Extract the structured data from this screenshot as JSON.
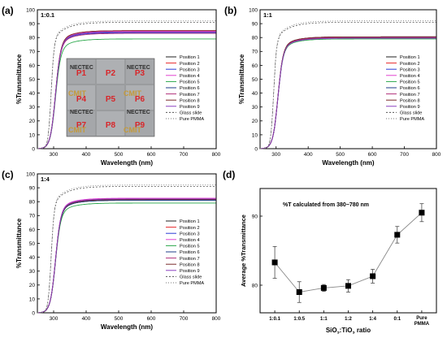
{
  "chart_data": [
    {
      "panel": "(a)",
      "type": "line",
      "ratio_label": "1:0.1",
      "xlabel": "Wavelength (nm)",
      "ylabel": "%Transmittance",
      "xlim": [
        250,
        800
      ],
      "ylim": [
        0,
        100
      ],
      "xticks": [
        300,
        400,
        500,
        600,
        700,
        800
      ],
      "yticks": [
        0,
        10,
        20,
        30,
        40,
        50,
        60,
        70,
        80,
        90,
        100
      ],
      "legend_position": "bottom-right",
      "series": [
        {
          "name": "Position 1",
          "color": "#222222",
          "dash": "",
          "plateau": 84
        },
        {
          "name": "Position 2",
          "color": "#e8292a",
          "dash": "",
          "plateau": 85
        },
        {
          "name": "Position 3",
          "color": "#2b3bd6",
          "dash": "",
          "plateau": 83.5
        },
        {
          "name": "Position 4",
          "color": "#e040d0",
          "dash": "",
          "plateau": 84.5
        },
        {
          "name": "Position 5",
          "color": "#2aa84a",
          "dash": "",
          "plateau": 79
        },
        {
          "name": "Position 6",
          "color": "#1f3c88",
          "dash": "",
          "plateau": 84
        },
        {
          "name": "Position 7",
          "color": "#b0307a",
          "dash": "",
          "plateau": 83
        },
        {
          "name": "Position 8",
          "color": "#7a2a2a",
          "dash": "",
          "plateau": 85
        },
        {
          "name": "Position 9",
          "color": "#8a3fbf",
          "dash": "",
          "plateau": 84
        },
        {
          "name": "Glass slide",
          "color": "#555555",
          "dash": "2,2",
          "plateau": 91
        },
        {
          "name": "Pure PMMA",
          "color": "#777777",
          "dash": "1,2",
          "plateau": 92
        }
      ],
      "inset": {
        "logo_text": [
          "NECTEC",
          "NECTEC",
          "CMIT",
          "CMIT",
          "NECTEC",
          "NECTEC",
          "CMIT",
          "CMIT"
        ],
        "positions": [
          "P1",
          "P2",
          "P3",
          "P4",
          "P5",
          "P6",
          "P7",
          "P8",
          "P9"
        ]
      }
    },
    {
      "panel": "(b)",
      "type": "line",
      "ratio_label": "1:1",
      "xlabel": "Wavelength (nm)",
      "ylabel": "%Transmittance",
      "xlim": [
        250,
        800
      ],
      "ylim": [
        0,
        100
      ],
      "xticks": [
        300,
        400,
        500,
        600,
        700,
        800
      ],
      "yticks": [
        0,
        10,
        20,
        30,
        40,
        50,
        60,
        70,
        80,
        90,
        100
      ],
      "legend_position": "right",
      "series": [
        {
          "name": "Position 1",
          "color": "#222222",
          "dash": "",
          "plateau": 80
        },
        {
          "name": "Position 2",
          "color": "#e8292a",
          "dash": "",
          "plateau": 80.5
        },
        {
          "name": "Position 3",
          "color": "#2b3bd6",
          "dash": "",
          "plateau": 79.5
        },
        {
          "name": "Position 4",
          "color": "#e040d0",
          "dash": "",
          "plateau": 80
        },
        {
          "name": "Position 5",
          "color": "#2aa84a",
          "dash": "",
          "plateau": 79
        },
        {
          "name": "Position 6",
          "color": "#1f3c88",
          "dash": "",
          "plateau": 80.5
        },
        {
          "name": "Position 7",
          "color": "#b0307a",
          "dash": "",
          "plateau": 80
        },
        {
          "name": "Position 8",
          "color": "#7a2a2a",
          "dash": "",
          "plateau": 80.5
        },
        {
          "name": "Position 9",
          "color": "#8a3fbf",
          "dash": "",
          "plateau": 79.5
        },
        {
          "name": "Glass slide",
          "color": "#555555",
          "dash": "2,2",
          "plateau": 91
        },
        {
          "name": "Pure PMMA",
          "color": "#777777",
          "dash": "1,2",
          "plateau": 92
        }
      ]
    },
    {
      "panel": "(c)",
      "type": "line",
      "ratio_label": "1:4",
      "xlabel": "Wavelength (nm)",
      "ylabel": "%Transmittance",
      "xlim": [
        250,
        800
      ],
      "ylim": [
        0,
        100
      ],
      "xticks": [
        300,
        400,
        500,
        600,
        700,
        800
      ],
      "yticks": [
        0,
        10,
        20,
        30,
        40,
        50,
        60,
        70,
        80,
        90,
        100
      ],
      "legend_position": "right",
      "series": [
        {
          "name": "Position 1",
          "color": "#222222",
          "dash": "",
          "plateau": 81
        },
        {
          "name": "Position 2",
          "color": "#e8292a",
          "dash": "",
          "plateau": 82
        },
        {
          "name": "Position 3",
          "color": "#2b3bd6",
          "dash": "",
          "plateau": 81.5
        },
        {
          "name": "Position 4",
          "color": "#e040d0",
          "dash": "",
          "plateau": 82.5
        },
        {
          "name": "Position 5",
          "color": "#2aa84a",
          "dash": "",
          "plateau": 79
        },
        {
          "name": "Position 6",
          "color": "#1f3c88",
          "dash": "",
          "plateau": 81
        },
        {
          "name": "Position 7",
          "color": "#b0307a",
          "dash": "",
          "plateau": 82
        },
        {
          "name": "Position 8",
          "color": "#7a2a2a",
          "dash": "",
          "plateau": 81.5
        },
        {
          "name": "Position 9",
          "color": "#8a3fbf",
          "dash": "",
          "plateau": 82
        },
        {
          "name": "Glass slide",
          "color": "#555555",
          "dash": "2,2",
          "plateau": 91
        },
        {
          "name": "Pure PMMA",
          "color": "#777777",
          "dash": "1,2",
          "plateau": 92
        }
      ]
    },
    {
      "panel": "(d)",
      "type": "scatter",
      "annotation": "%T calculated from 380−780 nm",
      "ylabel": "Average %Transmittance",
      "xlabel_parts": [
        "SiO",
        "2",
        ":TiO",
        "2",
        " ratio"
      ],
      "categories": [
        "1:0.1",
        "1:0.5",
        "1:1",
        "1:2",
        "1:4",
        "0:1",
        "Pure PMMA"
      ],
      "values": [
        83.3,
        79.0,
        79.6,
        79.9,
        81.3,
        87.3,
        90.5
      ],
      "errors": [
        2.3,
        1.5,
        0.5,
        0.9,
        1.0,
        1.2,
        1.3
      ],
      "ylim": [
        76,
        94
      ],
      "yticks": [
        80,
        90
      ],
      "connector_color": "#888888",
      "marker_color": "#000000"
    }
  ]
}
